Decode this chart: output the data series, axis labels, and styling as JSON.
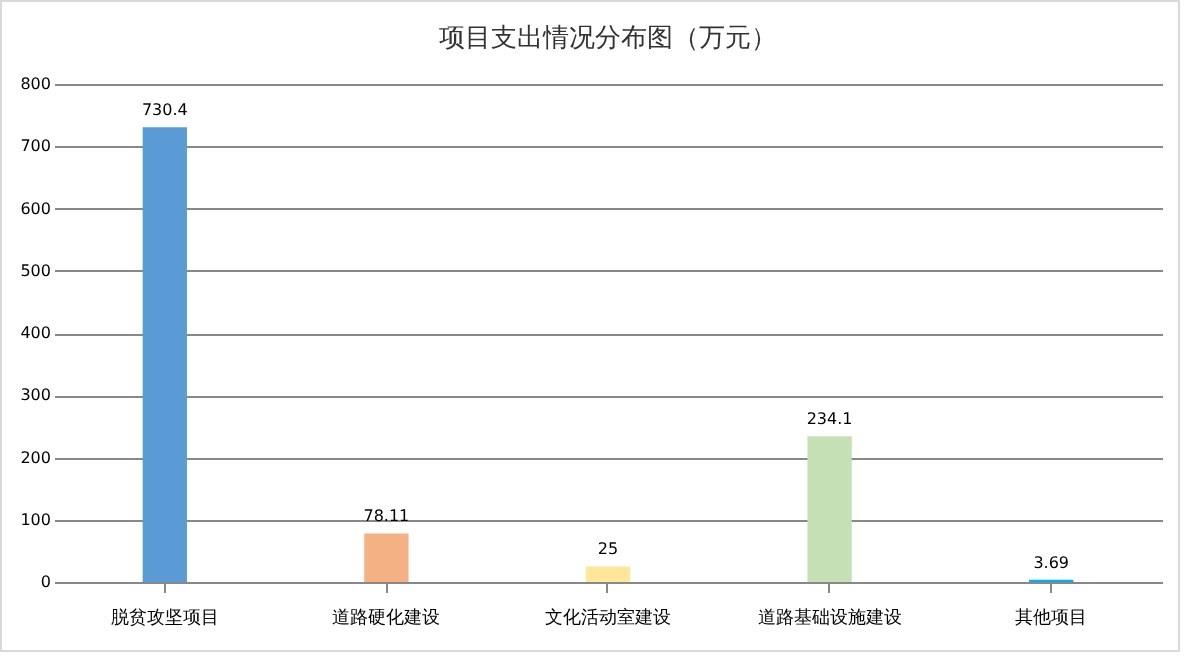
{
  "chart_data": {
    "type": "bar",
    "title": "项目支出情况分布图（万元）",
    "categories": [
      "脱贫攻坚项目",
      "道路硬化建设",
      "文化活动室建设",
      "道路基础设施建设",
      "其他项目"
    ],
    "values": [
      730.4,
      78.11,
      25,
      234.1,
      3.69
    ],
    "colors": [
      "#5b9bd5",
      "#f4b183",
      "#ffe699",
      "#c5e0b4",
      "#00b0f0"
    ],
    "ylim": [
      0,
      800
    ],
    "yticks": [
      0,
      100,
      200,
      300,
      400,
      500,
      600,
      700,
      800
    ],
    "grid": "y",
    "data_labels": true
  }
}
